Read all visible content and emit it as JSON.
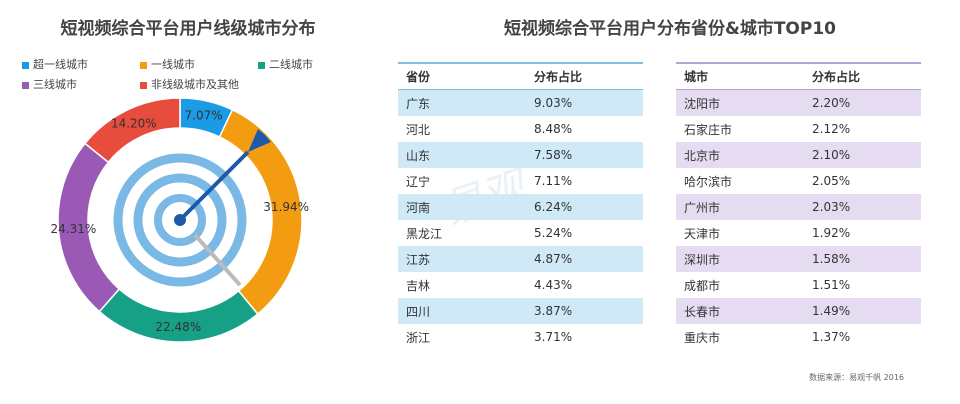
{
  "left_chart": {
    "title": "短视频综合平台用户线级城市分布",
    "legend": [
      {
        "label": "超一线城市",
        "color": "#1a9be6"
      },
      {
        "label": "一线城市",
        "color": "#f39c12"
      },
      {
        "label": "二线城市",
        "color": "#16a085"
      },
      {
        "label": "三线城市",
        "color": "#9b59b6"
      },
      {
        "label": "非线级城市及其他",
        "color": "#e74c3c"
      }
    ]
  },
  "chart_data": {
    "type": "pie",
    "title": "短视频综合平台用户线级城市分布",
    "categories": [
      "超一线城市",
      "一线城市",
      "二线城市",
      "三线城市",
      "非线级城市及其他"
    ],
    "values": [
      7.07,
      31.94,
      22.48,
      24.31,
      14.2
    ],
    "labels": [
      "7.07%",
      "31.94%",
      "22.48%",
      "24.31%",
      "14.20%"
    ],
    "colors": [
      "#1a9be6",
      "#f39c12",
      "#16a085",
      "#9b59b6",
      "#e74c3c"
    ],
    "legend_position": "top"
  },
  "right": {
    "title": "短视频综合平台用户分布省份&城市TOP10",
    "province_table": {
      "headers": [
        "省份",
        "分布占比"
      ],
      "rows": [
        [
          "广东",
          "9.03%"
        ],
        [
          "河北",
          "8.48%"
        ],
        [
          "山东",
          "7.58%"
        ],
        [
          "辽宁",
          "7.11%"
        ],
        [
          "河南",
          "6.24%"
        ],
        [
          "黑龙江",
          "5.24%"
        ],
        [
          "江苏",
          "4.87%"
        ],
        [
          "吉林",
          "4.43%"
        ],
        [
          "四川",
          "3.87%"
        ],
        [
          "浙江",
          "3.71%"
        ]
      ]
    },
    "city_table": {
      "headers": [
        "城市",
        "分布占比"
      ],
      "rows": [
        [
          "沈阳市",
          "2.20%"
        ],
        [
          "石家庄市",
          "2.12%"
        ],
        [
          "北京市",
          "2.10%"
        ],
        [
          "哈尔滨市",
          "2.05%"
        ],
        [
          "广州市",
          "2.03%"
        ],
        [
          "天津市",
          "1.92%"
        ],
        [
          "深圳市",
          "1.58%"
        ],
        [
          "成都市",
          "1.51%"
        ],
        [
          "长春市",
          "1.49%"
        ],
        [
          "重庆市",
          "1.37%"
        ]
      ]
    },
    "source": "数据来源：易观千帆 2016"
  },
  "watermark": "易观"
}
